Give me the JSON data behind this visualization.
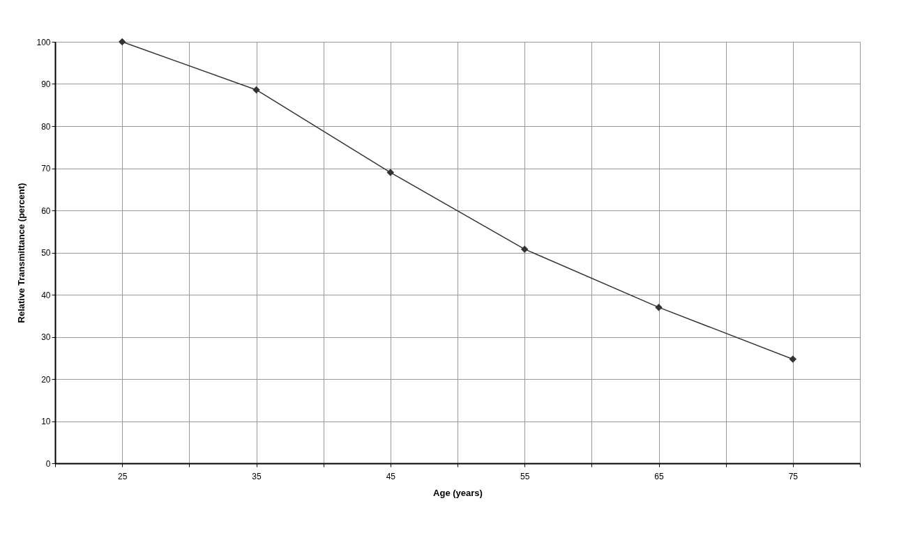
{
  "chart_data": {
    "type": "line",
    "xlabel": "Age (years)",
    "ylabel": "Relative Transmittance (percent)",
    "x": [
      25,
      35,
      45,
      55,
      65,
      75
    ],
    "series": [
      {
        "color": "#333333",
        "values": [
          100,
          88.6,
          69,
          50.8,
          37,
          24.7
        ]
      }
    ],
    "xlim": [
      20,
      80
    ],
    "xticks": [
      {
        "value": 20,
        "label": null
      },
      25,
      {
        "value": 30,
        "label": null
      },
      35,
      {
        "value": 40,
        "label": null
      },
      45,
      {
        "value": 50,
        "label": null
      },
      55,
      {
        "value": 60,
        "label": null
      },
      65,
      {
        "value": 70,
        "label": null
      },
      75,
      {
        "value": 80,
        "label": null
      }
    ],
    "ylim": [
      0,
      100
    ],
    "yticks": [
      0,
      10,
      20,
      30,
      40,
      50,
      60,
      70,
      80,
      90,
      100
    ],
    "grid": true,
    "marker": "diamond",
    "line_style": "solid"
  }
}
